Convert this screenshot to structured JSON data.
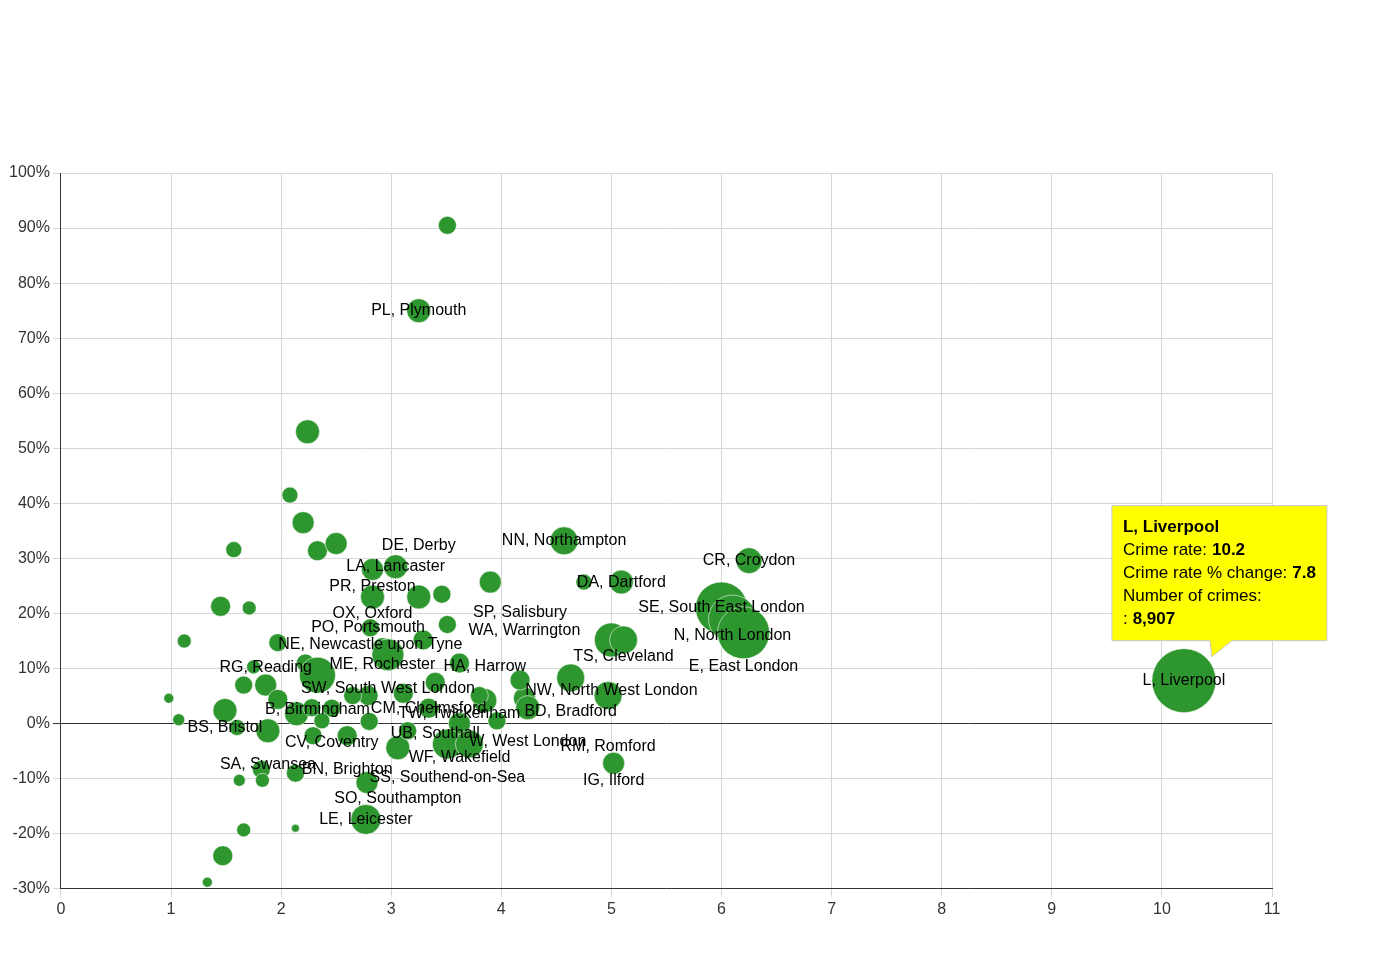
{
  "chart_data": {
    "type": "bubble",
    "color": "#2e962e",
    "grid": true,
    "xlim": [
      0,
      11
    ],
    "xticks": [
      0,
      1,
      2,
      3,
      4,
      5,
      6,
      7,
      8,
      9,
      10,
      11
    ],
    "ylim": [
      -30,
      100
    ],
    "yticks": [
      {
        "value": -30,
        "label": "-30%"
      },
      {
        "value": -20,
        "label": "-20%"
      },
      {
        "value": -10,
        "label": "-10%"
      },
      {
        "value": 0,
        "label": "0%"
      },
      {
        "value": 10,
        "label": "10%"
      },
      {
        "value": 20,
        "label": "20%"
      },
      {
        "value": 30,
        "label": "30%"
      },
      {
        "value": 40,
        "label": "40%"
      },
      {
        "value": 50,
        "label": "50%"
      },
      {
        "value": 60,
        "label": "60%"
      },
      {
        "value": 70,
        "label": "70%"
      },
      {
        "value": 80,
        "label": "80%"
      },
      {
        "value": 90,
        "label": "90%"
      },
      {
        "value": 100,
        "label": "100%"
      }
    ],
    "x": [
      3.51,
      3.25,
      2.24,
      2.08,
      2.2,
      2.33,
      2.5,
      1.57,
      4.57,
      6.25,
      3.9,
      5.09,
      4.75,
      3.04,
      2.83,
      1.45,
      1.71,
      2.83,
      3.25,
      3.46,
      3.51,
      2.81,
      1.12,
      1.97,
      6.0,
      6.1,
      6.2,
      5.0,
      5.11,
      3.29,
      2.92,
      2.97,
      3.62,
      2.22,
      1.75,
      2.33,
      4.63,
      1.86,
      1.66,
      4.97,
      0.98,
      3.85,
      4.21,
      3.4,
      4.17,
      2.46,
      3.62,
      1.49,
      1.07,
      1.88,
      1.6,
      3.51,
      3.06,
      3.71,
      2.6,
      2.29,
      5.02,
      1.82,
      1.83,
      1.62,
      2.13,
      2.78,
      2.77,
      2.13,
      1.66,
      1.47,
      1.33,
      2.79,
      3.34,
      4.24,
      2.65,
      3.11,
      3.8,
      3.96,
      2.37,
      2.14,
      1.97,
      2.8,
      3.15,
      2.28,
      10.2
    ],
    "values": [
      90.5,
      75,
      53,
      41.5,
      36.5,
      31.4,
      32.7,
      31.6,
      33.2,
      29.6,
      25.7,
      25.7,
      25.7,
      28.5,
      28,
      21.3,
      21,
      23,
      23,
      23.5,
      18,
      17.4,
      15,
      14.7,
      21,
      19,
      16.5,
      15.2,
      15.2,
      15.2,
      13.8,
      12.5,
      11,
      11,
      10.3,
      8.8,
      8.3,
      7,
      7,
      5.1,
      4.6,
      4.2,
      4.6,
      7.5,
      7.9,
      2.8,
      0,
      2.4,
      0.7,
      -1.3,
      -0.7,
      -3.7,
      -4.4,
      -3.7,
      -2.2,
      -2.2,
      -7.2,
      -8.3,
      -10.3,
      -10.3,
      -9,
      -10.7,
      -17.4,
      -19,
      -19.3,
      -24,
      -28.8,
      5.1,
      2.8,
      2.9,
      5.1,
      5.5,
      5.1,
      0.5,
      0.5,
      1.8,
      4.4,
      0.4,
      -1.3,
      2.9,
      7.8
    ],
    "sizes": [
      705,
      1253,
      1253,
      557,
      1053,
      870,
      1053,
      557,
      1705,
      1470,
      1053,
      1253,
      557,
      1253,
      1053,
      870,
      426,
      1253,
      1253,
      705,
      705,
      705,
      426,
      705,
      5880,
      5010,
      5880,
      2514,
      1705,
      870,
      870,
      2227,
      870,
      705,
      426,
      2818,
      1705,
      1053,
      705,
      1705,
      217,
      1253,
      1053,
      870,
      870,
      705,
      1053,
      1253,
      313,
      1253,
      557,
      1957,
      1253,
      1705,
      870,
      705,
      1053,
      705,
      426,
      313,
      705,
      1053,
      1957,
      139,
      426,
      870,
      217,
      870,
      870,
      1253,
      705,
      870,
      705,
      705,
      557,
      1253,
      870,
      705,
      705,
      705,
      8907
    ],
    "labels": [
      null,
      "PL, Plymouth",
      null,
      null,
      null,
      null,
      null,
      null,
      "NN, Northampton",
      "CR, Croydon",
      null,
      "DA, Dartford",
      null,
      "LA, Lancaster",
      "PR, Preston",
      null,
      null,
      "OX, Oxford",
      "DE, Derby",
      null,
      null,
      "NE, Newcastle upon Tyne",
      null,
      null,
      "SE, South East London",
      "N, North London",
      "E, East London",
      "NW, North West London",
      "TS, Cleveland",
      null,
      "ME, Rochester",
      "SW, South West London",
      "TW, Twickenham",
      null,
      null,
      "B, Birmingham",
      "BD, Bradford",
      "RG, Reading",
      null,
      "RM, Romford",
      null,
      "HA, Harrow",
      "WA, Warrington",
      "UB, Southall",
      "SP, Salisbury",
      "CV, Coventry",
      "WF, Wakefield",
      "BS, Bristol",
      null,
      "SA, Swansea",
      null,
      "SS, Southend-on-Sea",
      "SO, Southampton",
      null,
      "BN, Brighton",
      null,
      "IG, Ilford",
      null,
      null,
      null,
      null,
      null,
      "LE, Leicester",
      null,
      null,
      null,
      null,
      "PO, Portsmouth",
      "CM, Chelmsford",
      "W, West London",
      null,
      null,
      null,
      null,
      null,
      null,
      null,
      null,
      null,
      null,
      "L, Liverpool"
    ],
    "tooltip": {
      "title": "L, Liverpool",
      "lines": [
        {
          "text": "Crime rate:",
          "bold": "10.2"
        },
        {
          "text": "Crime rate % change:",
          "bold": "7.8"
        },
        {
          "text": "Number of crimes:"
        },
        {
          "text": ":",
          "bold": "8,907"
        }
      ]
    }
  }
}
